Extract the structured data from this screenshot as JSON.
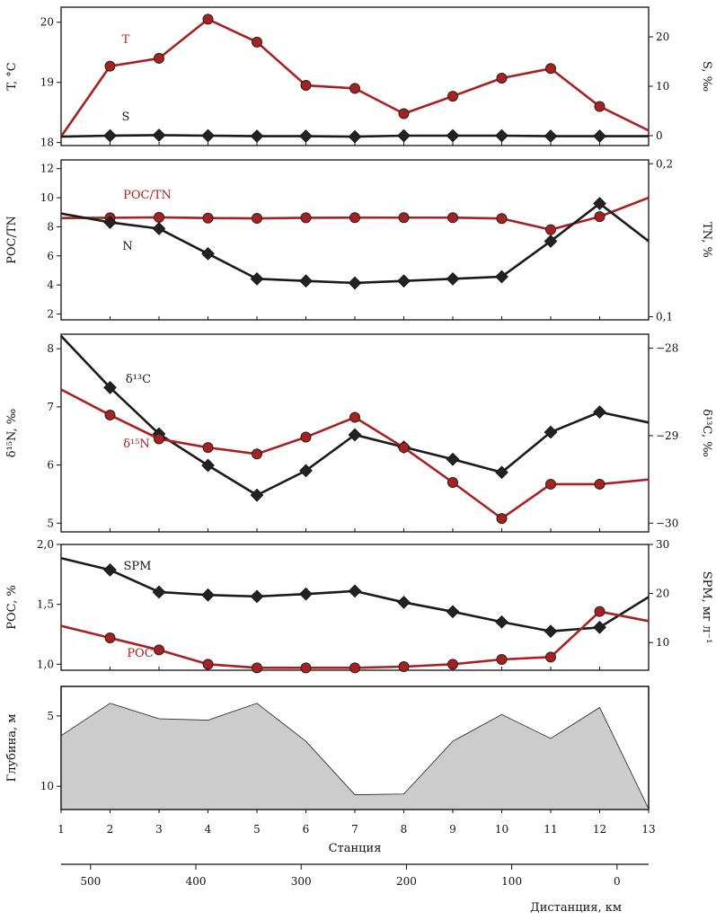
{
  "chart_data": [
    {
      "type": "line",
      "x": [
        1,
        2,
        3,
        4,
        5,
        6,
        7,
        8,
        9,
        10,
        11,
        12,
        13
      ],
      "left_axis": {
        "label": "T, °C",
        "ylim": [
          17.95,
          20.25
        ],
        "ticks": [
          18,
          19,
          20
        ],
        "tick_labels": [
          "18",
          "19",
          "20"
        ]
      },
      "right_axis": {
        "label": "S, ‰",
        "ylim": [
          -2,
          26
        ],
        "ticks": [
          0,
          10,
          20
        ],
        "tick_labels": [
          "0",
          "10",
          "20"
        ]
      },
      "series": [
        {
          "name": "T",
          "axis": "left",
          "color": "#a82121",
          "marker": "circle",
          "values": [
            18.1,
            19.27,
            19.4,
            20.05,
            19.67,
            18.95,
            18.9,
            18.48,
            18.77,
            19.07,
            19.23,
            18.6,
            18.2
          ],
          "markers": [
            false,
            true,
            true,
            true,
            true,
            true,
            true,
            true,
            true,
            true,
            true,
            true,
            false
          ]
        },
        {
          "name": "S",
          "axis": "right",
          "color": "#1a1a1a",
          "marker": "diamond",
          "values": [
            -0.2,
            0,
            0.1,
            0,
            -0.1,
            -0.1,
            -0.2,
            0,
            0,
            0,
            -0.1,
            -0.1,
            -0.1
          ],
          "markers": [
            false,
            true,
            true,
            true,
            true,
            true,
            true,
            true,
            true,
            true,
            true,
            true,
            false
          ]
        }
      ]
    },
    {
      "type": "line",
      "x": [
        1,
        2,
        3,
        4,
        5,
        6,
        7,
        8,
        9,
        10,
        11,
        12,
        13
      ],
      "left_axis": {
        "label": "POC/TN",
        "ylim": [
          1.6,
          12.6
        ],
        "ticks": [
          2,
          4,
          6,
          8,
          10,
          12
        ],
        "tick_labels": [
          "2",
          "4",
          "6",
          "8",
          "10",
          "12"
        ]
      },
      "right_axis": {
        "label": "TN, %",
        "ylim": [
          0.098,
          0.2025
        ],
        "ticks": [
          0.1,
          0.2
        ],
        "tick_labels": [
          "0,1",
          "0,2"
        ]
      },
      "series": [
        {
          "name": "POC/TN",
          "axis": "left",
          "color": "#a82121",
          "marker": "circle",
          "values": [
            8.6,
            8.62,
            8.65,
            8.6,
            8.58,
            8.62,
            8.63,
            8.63,
            8.63,
            8.57,
            7.8,
            8.7,
            10
          ],
          "markers": [
            false,
            true,
            true,
            true,
            true,
            true,
            true,
            true,
            true,
            true,
            true,
            true,
            false
          ]
        },
        {
          "name": "N",
          "axis": "right",
          "color": "#1a1a1a",
          "marker": "diamond",
          "values": [
            0.1675,
            0.1617,
            0.1576,
            0.1412,
            0.1248,
            0.1234,
            0.1221,
            0.1234,
            0.1248,
            0.1262,
            0.1494,
            0.174,
            0.1494
          ],
          "markers": [
            false,
            true,
            true,
            true,
            true,
            true,
            true,
            true,
            true,
            true,
            true,
            true,
            false
          ]
        }
      ]
    },
    {
      "type": "line",
      "x": [
        1,
        2,
        3,
        4,
        5,
        6,
        7,
        8,
        9,
        10,
        11,
        12,
        13
      ],
      "left_axis": {
        "label": "δ¹⁵N, ‰",
        "ylim": [
          4.85,
          8.25
        ],
        "ticks": [
          5,
          6,
          7,
          8
        ],
        "tick_labels": [
          "5",
          "6",
          "7",
          "8"
        ]
      },
      "right_axis": {
        "label": "δ¹³C, ‰",
        "ylim": [
          -30.1,
          -27.84
        ],
        "ticks": [
          -28,
          -29,
          -30
        ],
        "tick_labels": [
          "−28",
          "−29",
          "−30"
        ]
      },
      "series": [
        {
          "name": "δ¹³C",
          "axis": "right",
          "color": "#1a1a1a",
          "marker": "diamond",
          "values": [
            -27.86,
            -28.45,
            -28.98,
            -29.34,
            -29.68,
            -29.4,
            -28.99,
            -29.13,
            -29.27,
            -29.42,
            -28.96,
            -28.73,
            -28.85
          ],
          "markers": [
            false,
            true,
            true,
            true,
            true,
            true,
            true,
            true,
            true,
            true,
            true,
            true,
            false
          ]
        },
        {
          "name": "δ¹⁵N",
          "axis": "left",
          "color": "#a82121",
          "marker": "circle",
          "values": [
            7.3,
            6.86,
            6.45,
            6.3,
            6.19,
            6.48,
            6.82,
            6.3,
            5.7,
            5.08,
            5.67,
            5.67,
            5.75
          ],
          "markers": [
            false,
            true,
            true,
            true,
            true,
            true,
            true,
            true,
            true,
            true,
            true,
            true,
            false
          ]
        }
      ]
    },
    {
      "type": "line",
      "x": [
        1,
        2,
        3,
        4,
        5,
        6,
        7,
        8,
        9,
        10,
        11,
        12,
        13
      ],
      "left_axis": {
        "label": "POC, %",
        "ylim": [
          0.95,
          2.0
        ],
        "ticks": [
          1.0,
          1.5,
          2.0
        ],
        "tick_labels": [
          "1,0",
          "1,5",
          "2,0"
        ]
      },
      "right_axis": {
        "label": "SPM, мг л⁻¹",
        "ylim": [
          4.36,
          30
        ],
        "ticks": [
          10,
          20,
          30
        ],
        "tick_labels": [
          "10",
          "20",
          "30"
        ]
      },
      "series": [
        {
          "name": "SPM",
          "axis": "right",
          "color": "#1a1a1a",
          "marker": "diamond",
          "values": [
            27.2,
            24.8,
            20.3,
            19.7,
            19.4,
            19.9,
            20.5,
            18.2,
            16.3,
            14.2,
            12.3,
            13.1,
            19.3
          ],
          "markers": [
            false,
            true,
            true,
            true,
            true,
            true,
            true,
            true,
            true,
            true,
            true,
            true,
            false
          ]
        },
        {
          "name": "POC",
          "axis": "left",
          "color": "#a82121",
          "marker": "circle",
          "values": [
            1.32,
            1.22,
            1.12,
            1.0,
            0.97,
            0.97,
            0.97,
            0.98,
            1.0,
            1.04,
            1.06,
            1.44,
            1.36
          ],
          "markers": [
            false,
            true,
            true,
            true,
            true,
            true,
            true,
            true,
            true,
            true,
            true,
            true,
            false
          ]
        }
      ]
    },
    {
      "type": "area",
      "x": [
        1,
        2,
        3,
        4,
        5,
        6,
        7,
        8,
        9,
        10,
        11,
        12,
        13
      ],
      "ylabel": "Глубина, м",
      "ylim": [
        2.9,
        11.65
      ],
      "inverted": true,
      "ticks": [
        5,
        10
      ],
      "tick_labels": [
        "5",
        "10"
      ],
      "fill": "#cccccc",
      "values": [
        6.4,
        4.1,
        5.2,
        5.3,
        4.1,
        6.8,
        10.6,
        10.55,
        6.8,
        4.9,
        6.6,
        4.4,
        11.6
      ]
    }
  ],
  "x_axis": {
    "label": "Станция",
    "ticks": [
      1,
      2,
      3,
      4,
      5,
      6,
      7,
      8,
      9,
      10,
      11,
      12,
      13
    ],
    "tick_labels": [
      "1",
      "2",
      "3",
      "4",
      "5",
      "6",
      "7",
      "8",
      "9",
      "10",
      "11",
      "12",
      "13"
    ]
  },
  "distance_axis": {
    "label": "Дистанция, км",
    "ticks": [
      500,
      400,
      300,
      200,
      100,
      0
    ],
    "tick_labels": [
      "500",
      "400",
      "300",
      "200",
      "100",
      "0"
    ],
    "xlim_at_stations": [
      1,
      13
    ],
    "km_at_station_1": 528,
    "km_at_station_13": -30
  }
}
